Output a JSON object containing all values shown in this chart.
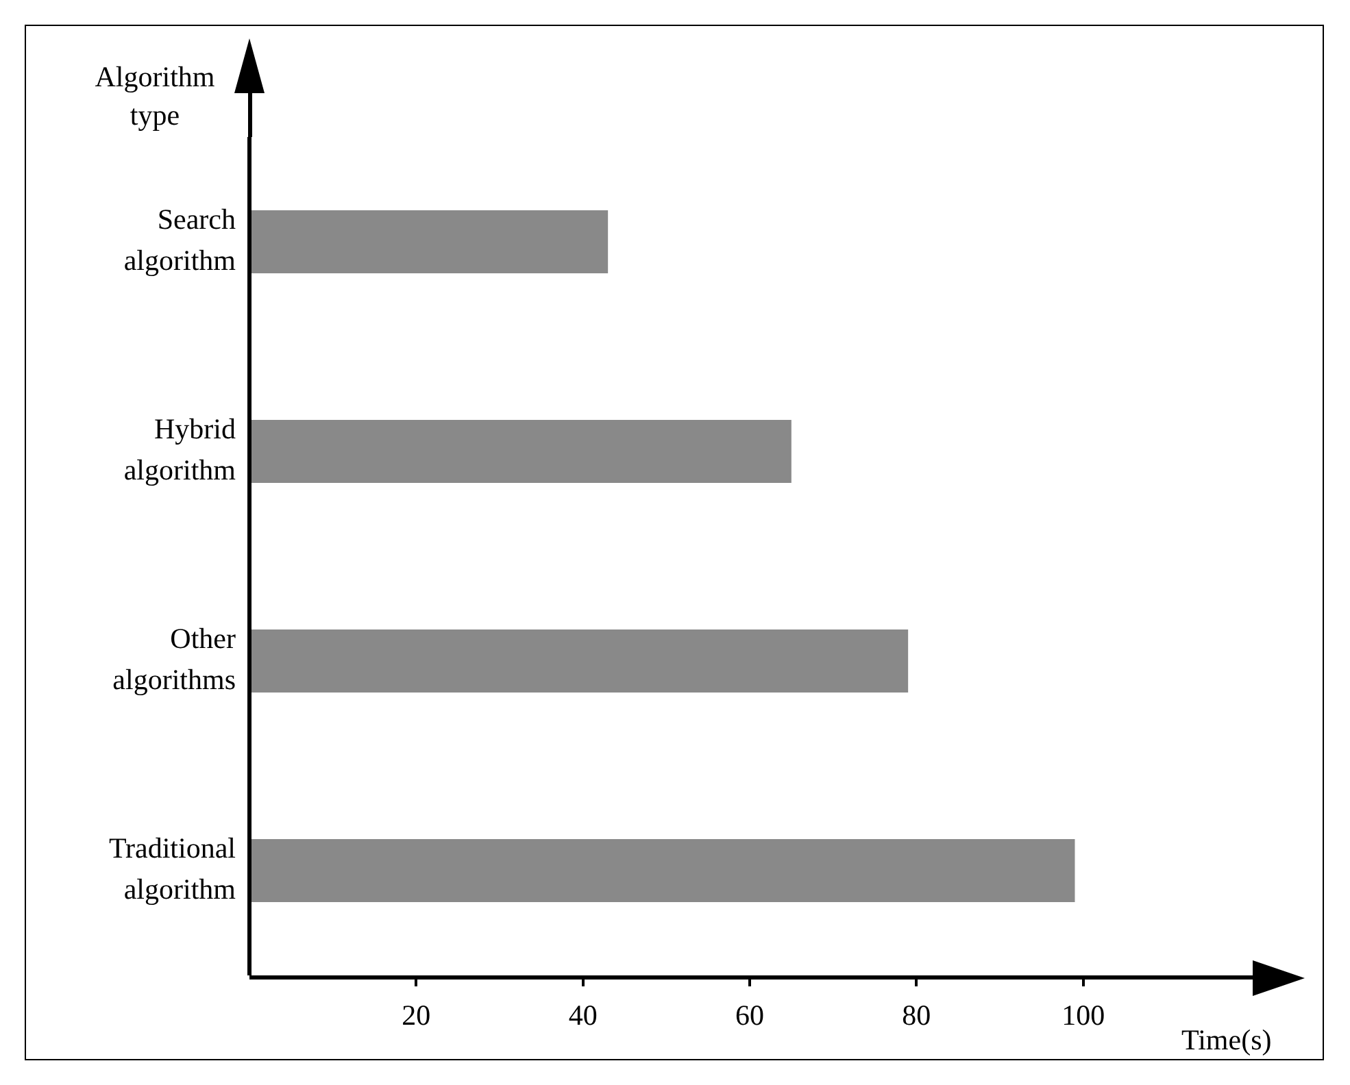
{
  "chart_data": {
    "type": "bar",
    "orientation": "horizontal",
    "categories": [
      "Search algorithm",
      "Hybrid algorithm",
      "Other algorithms",
      "Traditional algorithm"
    ],
    "values": [
      43,
      65,
      79,
      99
    ],
    "color": "#898989",
    "xlim": [
      0,
      120
    ],
    "xticks": [
      20,
      40,
      60,
      80,
      100
    ],
    "xlabel": "Time(s)",
    "ylabel": "Algorithm type",
    "grid": false,
    "legend": false
  }
}
